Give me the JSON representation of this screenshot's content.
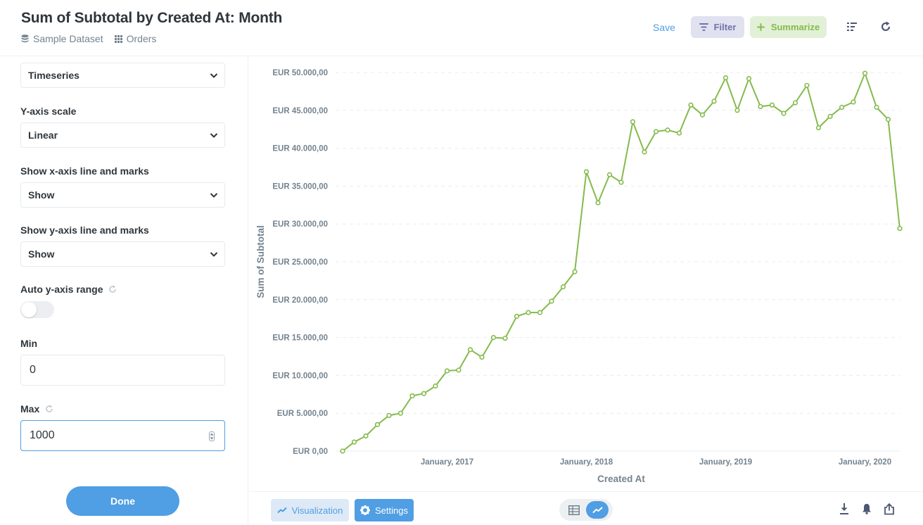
{
  "header": {
    "title": "Sum of Subtotal by Created At: Month",
    "breadcrumb": {
      "database": "Sample Dataset",
      "table": "Orders"
    },
    "save_label": "Save",
    "filter_label": "Filter",
    "summarize_label": "Summarize"
  },
  "sidebar": {
    "timeseries_value": "Timeseries",
    "yscale": {
      "label": "Y-axis scale",
      "value": "Linear"
    },
    "show_x": {
      "label": "Show x-axis line and marks",
      "value": "Show"
    },
    "show_y": {
      "label": "Show y-axis line and marks",
      "value": "Show"
    },
    "auto_range": {
      "label": "Auto y-axis range",
      "enabled": false
    },
    "min": {
      "label": "Min",
      "value": "0"
    },
    "max": {
      "label": "Max",
      "value": "1000"
    },
    "done_label": "Done"
  },
  "footer": {
    "visualization_label": "Visualization",
    "settings_label": "Settings"
  },
  "colors": {
    "brand": "#509ee3",
    "series": "#84bb4c",
    "filter": "#7172ad",
    "text_muted": "#74838f"
  },
  "chart_data": {
    "type": "line",
    "title": "",
    "xlabel": "Created At",
    "ylabel": "Sum of Subtotal",
    "ylim": [
      0,
      50000
    ],
    "yticks": [
      0,
      5000,
      10000,
      15000,
      20000,
      25000,
      30000,
      35000,
      40000,
      45000,
      50000
    ],
    "ytick_labels": [
      "EUR 0,00",
      "EUR 5.000,00",
      "EUR 10.000,00",
      "EUR 15.000,00",
      "EUR 20.000,00",
      "EUR 25.000,00",
      "EUR 30.000,00",
      "EUR 35.000,00",
      "EUR 40.000,00",
      "EUR 45.000,00",
      "EUR 50.000,00"
    ],
    "xticks": [
      {
        "label": "January, 2017",
        "at": "2017-01"
      },
      {
        "label": "January, 2018",
        "at": "2018-01"
      },
      {
        "label": "January, 2019",
        "at": "2019-01"
      },
      {
        "label": "January, 2020",
        "at": "2020-01"
      }
    ],
    "grid": true,
    "series": [
      {
        "x": [
          "2016-04",
          "2016-05",
          "2016-06",
          "2016-07",
          "2016-08",
          "2016-09",
          "2016-10",
          "2016-11",
          "2016-12",
          "2017-01",
          "2017-02",
          "2017-03",
          "2017-04",
          "2017-05",
          "2017-06",
          "2017-07",
          "2017-08",
          "2017-09",
          "2017-10",
          "2017-11",
          "2017-12",
          "2018-01",
          "2018-02",
          "2018-03",
          "2018-04",
          "2018-05",
          "2018-06",
          "2018-07",
          "2018-08",
          "2018-09",
          "2018-10",
          "2018-11",
          "2018-12",
          "2019-01",
          "2019-02",
          "2019-03",
          "2019-04",
          "2019-05",
          "2019-06",
          "2019-07",
          "2019-08",
          "2019-09",
          "2019-10",
          "2019-11",
          "2019-12",
          "2020-01",
          "2020-02",
          "2020-03",
          "2020-04"
        ],
        "values": [
          0,
          1200,
          2000,
          3500,
          4700,
          5000,
          7300,
          7600,
          8600,
          10600,
          10700,
          13400,
          12400,
          15000,
          14900,
          17800,
          18300,
          18300,
          19800,
          21700,
          23700,
          36900,
          32800,
          36500,
          35500,
          43500,
          39500,
          42200,
          42400,
          42000,
          45700,
          44400,
          46200,
          49300,
          45000,
          49200,
          45500,
          45700,
          44600,
          46000,
          48300,
          42700,
          44200,
          45400,
          46100,
          49900,
          45400,
          43800,
          29400
        ]
      }
    ]
  }
}
